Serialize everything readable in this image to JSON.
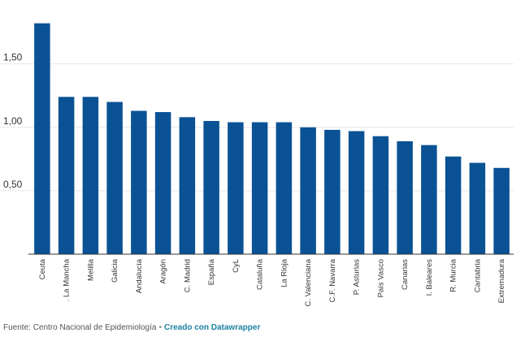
{
  "chart_data": {
    "type": "bar",
    "title": "",
    "xlabel": "",
    "ylabel": "",
    "ylim": [
      0,
      1.85
    ],
    "yticks": [
      {
        "value": 0.5,
        "label": "0,50"
      },
      {
        "value": 1.0,
        "label": "1,00"
      },
      {
        "value": 1.5,
        "label": "1,50"
      }
    ],
    "grid": true,
    "bar_color": "#0a5294",
    "categories": [
      "Ceuta",
      ". La Mancha",
      "Melilla",
      "Galicia",
      "Andalucía",
      "Aragón",
      "C. Madrid",
      "España",
      "CyL",
      "Cataluña",
      "La Rioja",
      "C. Valenciana",
      "C.F. Navarra",
      "P. Asturias",
      "País Vasco",
      "Canarias",
      "I. Baleares",
      "R. Murcia",
      "Cantabria",
      "Extremadura"
    ],
    "values": [
      1.82,
      1.24,
      1.24,
      1.2,
      1.13,
      1.12,
      1.08,
      1.05,
      1.04,
      1.04,
      1.04,
      1.0,
      0.98,
      0.97,
      0.93,
      0.89,
      0.86,
      0.77,
      0.72,
      0.68
    ]
  },
  "footer": {
    "source": "Fuente: Centro Nacional de Epidemiología",
    "separator": "•",
    "credit": "Creado con Datawrapper"
  }
}
